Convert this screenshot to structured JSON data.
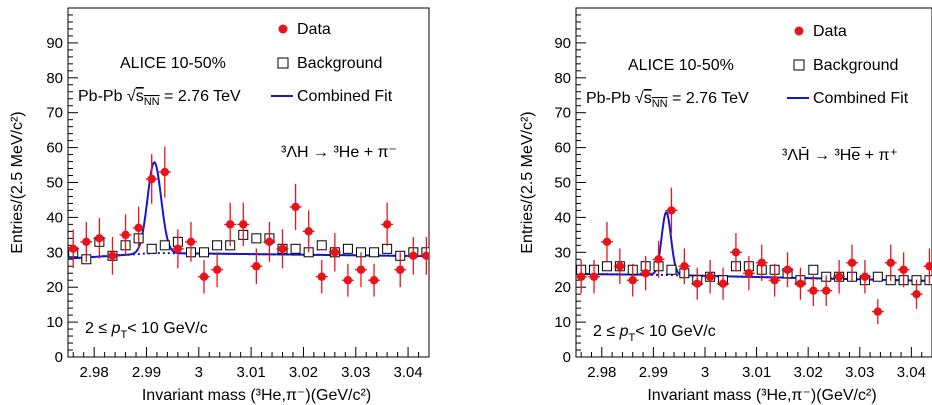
{
  "chart_data": [
    {
      "type": "scatter",
      "panel": "left",
      "experiment_label": "ALICE 10-50%",
      "system_label_prefix": "Pb-Pb",
      "system_label_sqrt": "s",
      "system_label_sub": "NN",
      "system_label_value": "= 2.76 TeV",
      "reaction": "³ΛH → ³He + π⁻",
      "pt_label_prefix": "2 ≤",
      "pt_label_var": "p",
      "pt_label_sub": "T",
      "pt_label_suffix": "< 10 GeV/c",
      "xlabel": "Invariant mass (³He,π⁻)(GeV/c²)",
      "ylabel": "Entries/(2.5 MeV/c²)",
      "xlim": [
        2.975,
        3.044
      ],
      "ylim": [
        0,
        100
      ],
      "xticks": [
        2.98,
        2.99,
        3.0,
        3.01,
        3.02,
        3.03,
        3.04
      ],
      "xtick_labels": [
        "2.98",
        "2.99",
        "3",
        "3.01",
        "3.02",
        "3.03",
        "3.04"
      ],
      "yticks": [
        0,
        10,
        20,
        30,
        40,
        50,
        60,
        70,
        80,
        90
      ],
      "ytick_labels": [
        "0",
        "10",
        "20",
        "30",
        "40",
        "50",
        "60",
        "70",
        "80",
        "90"
      ],
      "legend": [
        {
          "label": "Data",
          "marker": "filled-circle",
          "color": "#e8141b"
        },
        {
          "label": "Background",
          "marker": "open-square",
          "color": "#000000"
        },
        {
          "label": "Combined Fit",
          "marker": "line",
          "color": "#1515d6"
        }
      ],
      "series": [
        {
          "name": "Data",
          "x": [
            2.976,
            2.9785,
            2.981,
            2.9835,
            2.986,
            2.9885,
            2.991,
            2.9935,
            2.996,
            2.9985,
            3.001,
            3.0035,
            3.006,
            3.0085,
            3.011,
            3.0135,
            3.016,
            3.0185,
            3.021,
            3.0235,
            3.026,
            3.0285,
            3.031,
            3.0335,
            3.036,
            3.0385,
            3.041,
            3.0435
          ],
          "y": [
            31,
            33,
            34,
            29,
            35,
            37,
            51,
            53,
            31,
            33,
            23,
            25,
            38,
            38,
            26,
            33,
            31,
            43,
            36,
            23,
            30,
            22,
            25,
            22,
            38,
            25,
            29,
            29
          ],
          "yerr": [
            5.5,
            5.7,
            5.8,
            5.4,
            5.9,
            6.1,
            7.1,
            7.3,
            5.6,
            5.7,
            4.8,
            5.0,
            6.2,
            6.2,
            5.1,
            5.7,
            5.6,
            6.6,
            6.0,
            4.8,
            5.5,
            4.7,
            5.0,
            4.7,
            6.2,
            5.0,
            5.4,
            5.4
          ]
        },
        {
          "name": "Background",
          "x": [
            2.976,
            2.9785,
            2.981,
            2.9835,
            2.986,
            2.9885,
            2.991,
            2.9935,
            2.996,
            2.9985,
            3.001,
            3.0035,
            3.006,
            3.0085,
            3.011,
            3.0135,
            3.016,
            3.0185,
            3.021,
            3.0235,
            3.026,
            3.0285,
            3.031,
            3.0335,
            3.036,
            3.0385,
            3.041,
            3.0435
          ],
          "y": [
            30,
            28,
            33,
            29,
            32,
            34,
            31,
            32,
            33,
            30,
            30,
            32,
            32,
            35,
            34,
            34,
            31,
            31,
            30,
            32,
            30,
            31,
            30,
            30,
            31,
            29,
            30,
            30
          ]
        },
        {
          "name": "Combined Fit",
          "type": "line",
          "model": "gaussian+linear",
          "mu": 2.9915,
          "sigma": 0.0013,
          "amplitude": 26,
          "bkg_at_xmin": 28.2,
          "bkg_at_peak": 29.8,
          "bkg_at_xmax": 28.9
        }
      ]
    },
    {
      "type": "scatter",
      "panel": "right",
      "experiment_label": "ALICE 10-50%",
      "system_label_prefix": "Pb-Pb",
      "system_label_sqrt": "s",
      "system_label_sub": "NN",
      "system_label_value": "= 2.76 TeV",
      "reaction": "³ΛH̄ → ³He̅ + π⁺",
      "pt_label_prefix": "2 ≤",
      "pt_label_var": "p",
      "pt_label_sub": "T",
      "pt_label_suffix": "< 10 GeV/c",
      "xlabel": "Invariant mass (³He,π⁻)(GeV/c²)",
      "ylabel": "Entries/(2.5 MeV/c²)",
      "xlim": [
        2.975,
        3.044
      ],
      "ylim": [
        0,
        100
      ],
      "xticks": [
        2.98,
        2.99,
        3.0,
        3.01,
        3.02,
        3.03,
        3.04
      ],
      "xtick_labels": [
        "2.98",
        "2.99",
        "3",
        "3.01",
        "3.02",
        "3.03",
        "3.04"
      ],
      "yticks": [
        0,
        10,
        20,
        30,
        40,
        50,
        60,
        70,
        80,
        90
      ],
      "ytick_labels": [
        "0",
        "10",
        "20",
        "30",
        "40",
        "50",
        "60",
        "70",
        "80",
        "90"
      ],
      "legend": [
        {
          "label": "Data",
          "marker": "filled-circle",
          "color": "#e8141b"
        },
        {
          "label": "Background",
          "marker": "open-square",
          "color": "#000000"
        },
        {
          "label": "Combined Fit",
          "marker": "line",
          "color": "#1515d6"
        }
      ],
      "series": [
        {
          "name": "Data",
          "x": [
            2.976,
            2.9785,
            2.981,
            2.9835,
            2.986,
            2.9885,
            2.991,
            2.9935,
            2.996,
            2.9985,
            3.001,
            3.0035,
            3.006,
            3.0085,
            3.011,
            3.0135,
            3.016,
            3.0185,
            3.021,
            3.0235,
            3.026,
            3.0285,
            3.031,
            3.0335,
            3.036,
            3.0385,
            3.041,
            3.0435
          ],
          "y": [
            23,
            23,
            33,
            26,
            22,
            24,
            28,
            42,
            26,
            21,
            23,
            21,
            30,
            24,
            27,
            22,
            25,
            21,
            19,
            19,
            23,
            27,
            23,
            13,
            27,
            25,
            18,
            26
          ],
          "yerr": [
            4.8,
            4.8,
            5.7,
            5.1,
            4.7,
            4.9,
            5.3,
            6.5,
            5.1,
            4.6,
            4.8,
            4.6,
            5.5,
            4.9,
            5.2,
            4.7,
            5.0,
            4.6,
            4.4,
            4.4,
            4.8,
            5.2,
            4.8,
            3.6,
            5.2,
            5.0,
            4.2,
            5.1
          ]
        },
        {
          "name": "Background",
          "x": [
            2.976,
            2.9785,
            2.981,
            2.9835,
            2.986,
            2.9885,
            2.991,
            2.9935,
            2.996,
            2.9985,
            3.001,
            3.0035,
            3.006,
            3.0085,
            3.011,
            3.0135,
            3.016,
            3.0185,
            3.021,
            3.0235,
            3.026,
            3.0285,
            3.031,
            3.0335,
            3.036,
            3.0385,
            3.041,
            3.0435
          ],
          "y": [
            25,
            25,
            26,
            26,
            25,
            26,
            26,
            25,
            24,
            22,
            23,
            22,
            26,
            26,
            25,
            25,
            24,
            22,
            25,
            23,
            23,
            23,
            22,
            23,
            22,
            22,
            22,
            22
          ]
        },
        {
          "name": "Combined Fit",
          "type": "line",
          "model": "gaussian+linear",
          "mu": 2.9925,
          "sigma": 0.0009,
          "amplitude": 18,
          "bkg_at_xmin": 23.8,
          "bkg_at_peak": 23.5,
          "bkg_at_xmax": 21.8
        }
      ]
    }
  ]
}
